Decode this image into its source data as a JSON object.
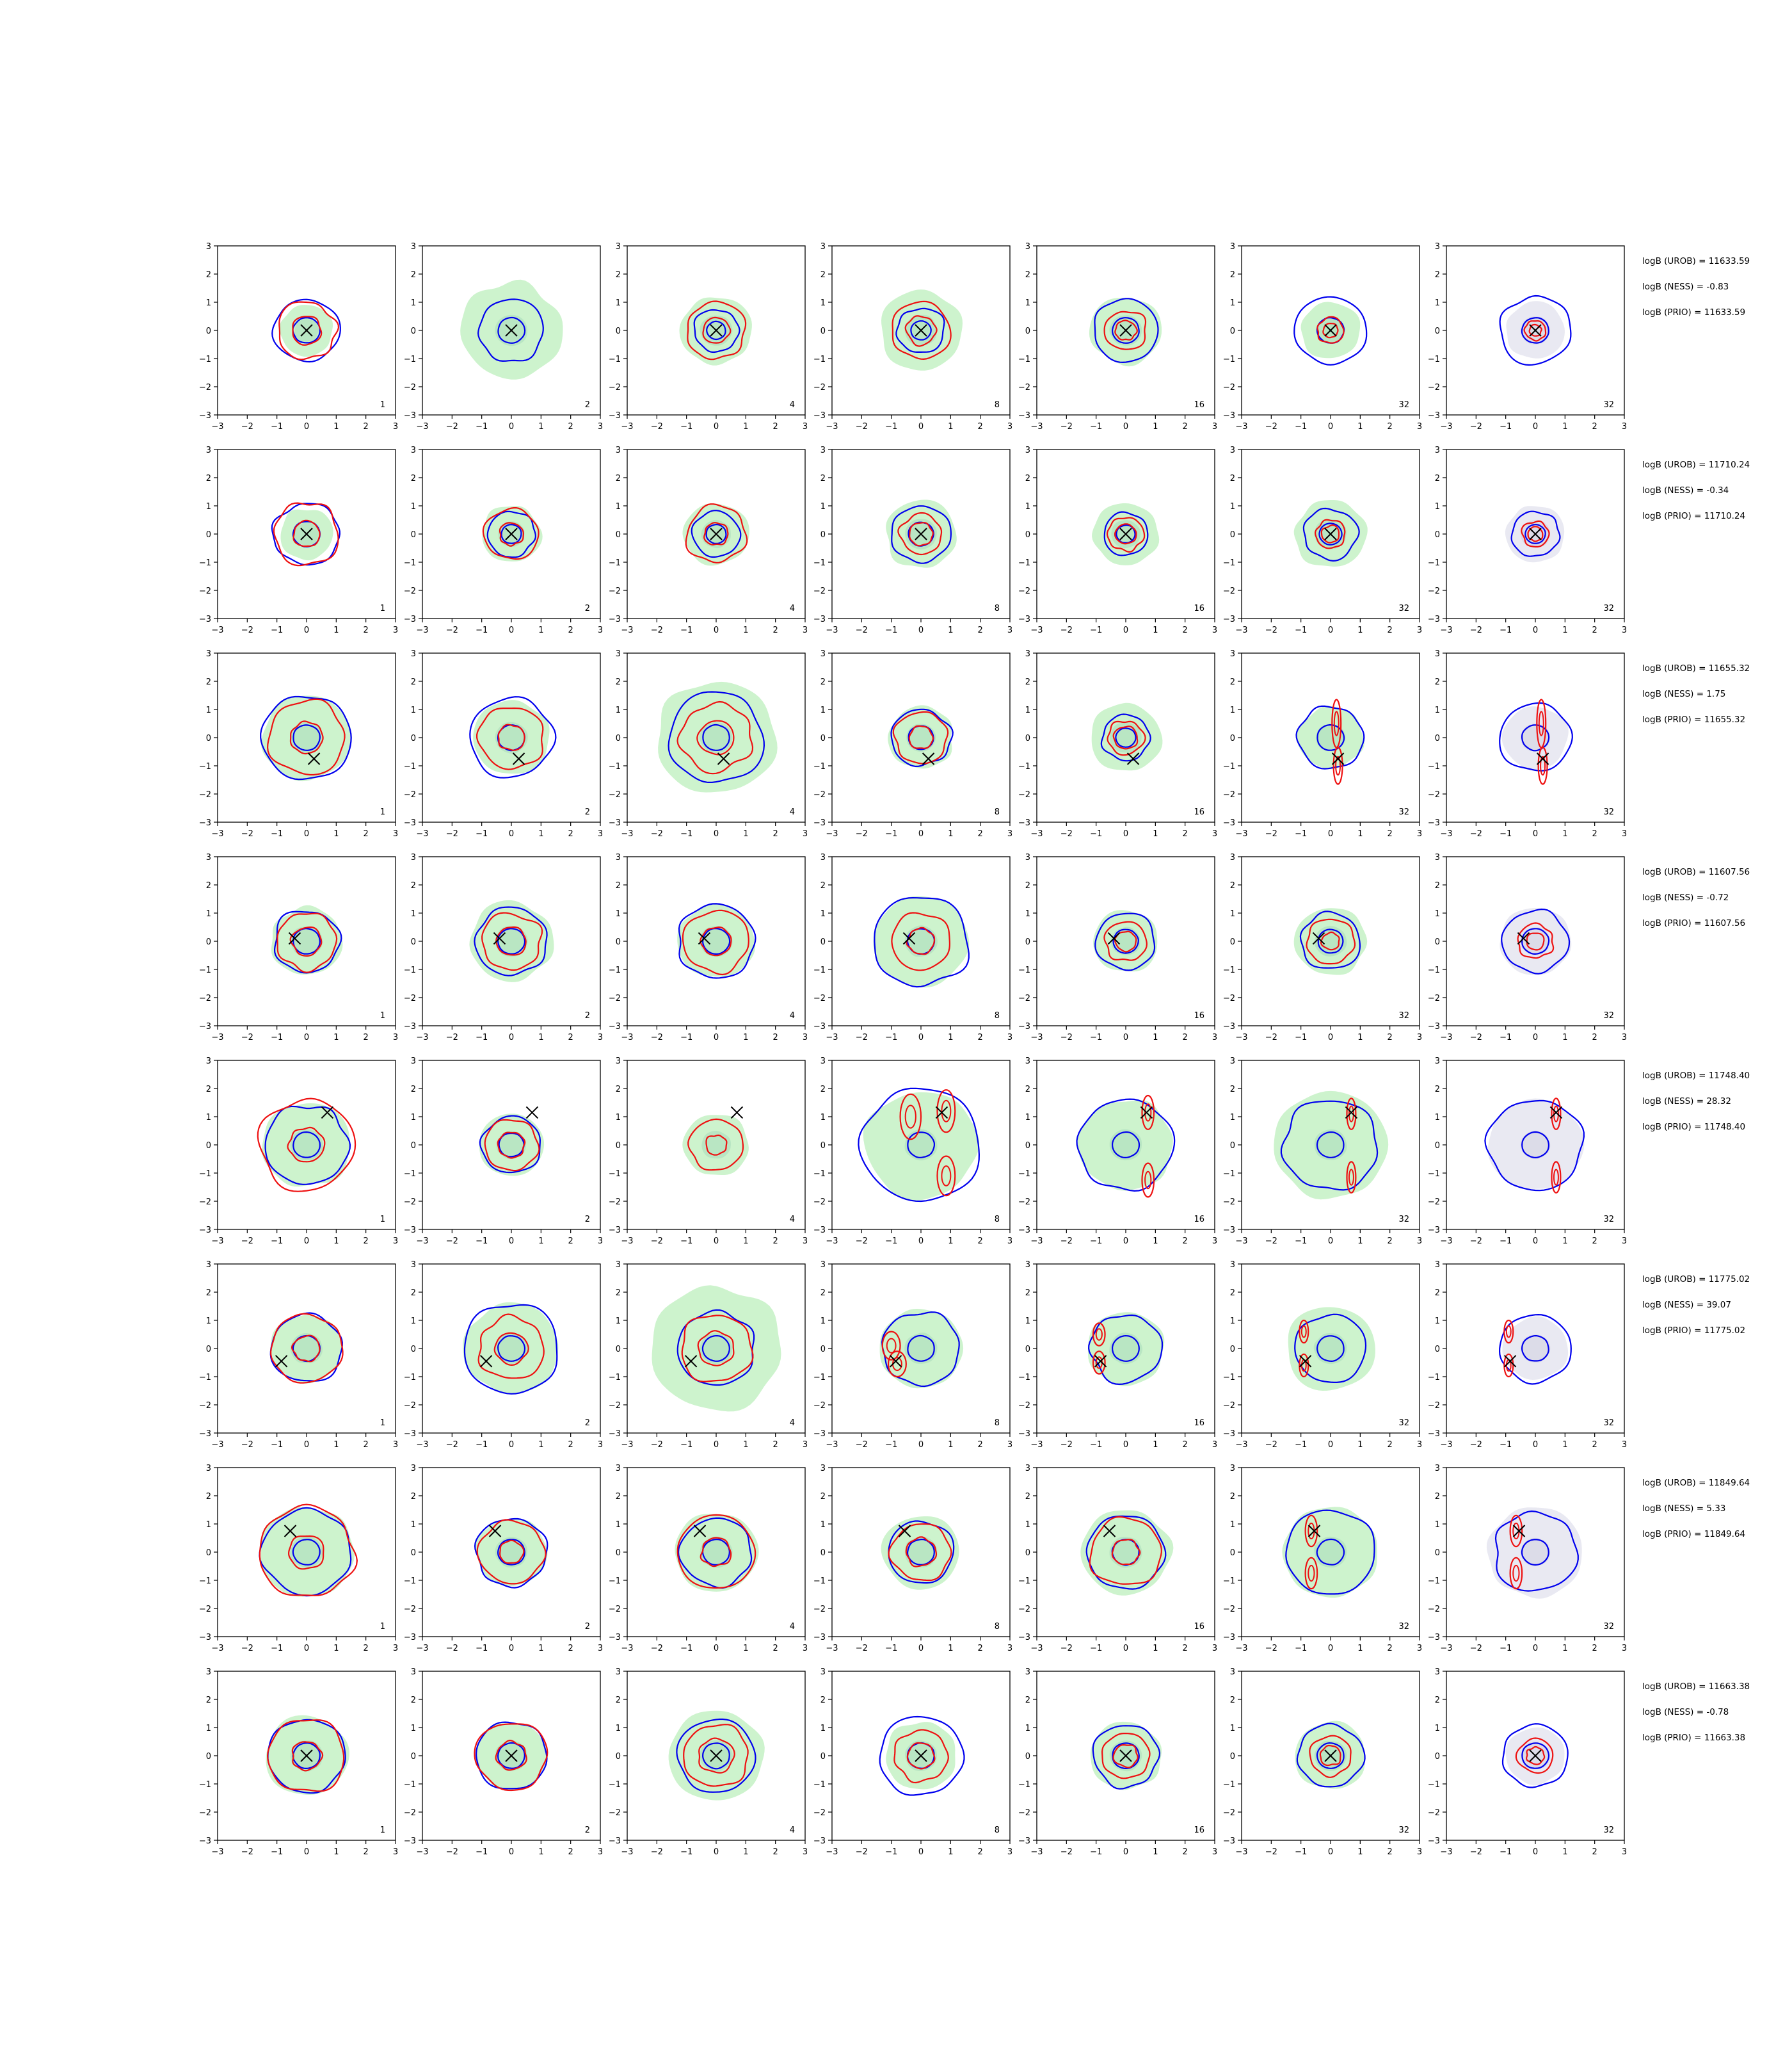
{
  "chart_data": {
    "type": "contour-grid",
    "rows": 8,
    "cols": 7,
    "xlim": [
      -3,
      3
    ],
    "ylim": [
      -3,
      3
    ],
    "ticks": [
      "−3",
      "−2",
      "−1",
      "0",
      "1",
      "2",
      "3"
    ],
    "tick_values": [
      -3,
      -2,
      -1,
      0,
      1,
      2,
      3
    ],
    "column_labels": [
      "1",
      "2",
      "4",
      "8",
      "16",
      "32",
      "32"
    ],
    "colors": {
      "blue_contour": "#0000ee",
      "red_contour": "#ee1111",
      "green_fill": "#cdf3cd",
      "green_core": "#b9e6c3",
      "grey_fill": "#e9e9f2",
      "marker": "#000000"
    },
    "panels": [
      [
        {
          "marker": [
            0,
            0
          ],
          "green": 0.9,
          "blue": 1.1,
          "red": [
            1.0,
            0.5
          ]
        },
        {
          "marker": [
            0,
            0
          ],
          "green": 1.7,
          "blue": 1.1,
          "red": []
        },
        {
          "marker": [
            0,
            0
          ],
          "green": 1.2,
          "blue": 0.75,
          "red": [
            1.0,
            0.45
          ]
        },
        {
          "marker": [
            0,
            0
          ],
          "green": 1.4,
          "blue": 0.8,
          "red": [
            1.0,
            0.5
          ]
        },
        {
          "marker": [
            0,
            0
          ],
          "green": 1.2,
          "blue": 1.1,
          "red": [
            0.7,
            0.35
          ]
        },
        {
          "marker": [
            0,
            0
          ],
          "green": 1.0,
          "blue": 1.2,
          "red": [
            0.45,
            0.25
          ]
        },
        {
          "marker": [
            0,
            0
          ],
          "grey": 1.0,
          "blue": 1.2,
          "red": [
            0.35,
            0.2
          ]
        }
      ],
      [
        {
          "marker": [
            0,
            0
          ],
          "green": 0.9,
          "blue": 1.1,
          "red": [
            1.1,
            0.45
          ]
        },
        {
          "marker": [
            0,
            0
          ],
          "green": 1.0,
          "blue": 0.8,
          "red": [
            0.9,
            0.4
          ]
        },
        {
          "marker": [
            0,
            0
          ],
          "green": 1.1,
          "blue": 0.8,
          "red": [
            1.0,
            0.4
          ]
        },
        {
          "marker": [
            0,
            0
          ],
          "green": 1.2,
          "blue": 1.0,
          "red": [
            0.7,
            0.4
          ]
        },
        {
          "marker": [
            0,
            0
          ],
          "green": 1.1,
          "blue": 0.75,
          "red": [
            0.6,
            0.35
          ]
        },
        {
          "marker": [
            0,
            0
          ],
          "green": 1.2,
          "blue": 0.9,
          "red": [
            0.5,
            0.3
          ]
        },
        {
          "marker": [
            0,
            0
          ],
          "grey": 1.0,
          "blue": 0.8,
          "red": [
            0.45,
            0.25
          ]
        }
      ],
      [
        {
          "marker": [
            0.25,
            -0.75
          ],
          "green": 1.5,
          "blue": 1.5,
          "red": [
            1.3,
            0.55
          ]
        },
        {
          "marker": [
            0.25,
            -0.75
          ],
          "green": 1.3,
          "blue": 1.4,
          "red": [
            1.1,
            0.45
          ]
        },
        {
          "marker": [
            0.25,
            -0.75
          ],
          "green": 2.0,
          "blue": 1.6,
          "red": [
            1.2,
            0.6
          ]
        },
        {
          "marker": [
            0.25,
            -0.75
          ],
          "green": 1.1,
          "blue": 1.0,
          "red": [
            0.9,
            0.4
          ]
        },
        {
          "marker": [
            0.25,
            -0.75
          ],
          "green": 1.2,
          "blue": 0.8,
          "red": [
            0.6,
            0.4
          ]
        },
        {
          "marker": [
            0.25,
            -0.75
          ],
          "green": 1.1,
          "blue": 1.1,
          "ellipses": [
            [
              0.2,
              0.5,
              0.15,
              0.85
            ],
            [
              0.25,
              -1.0,
              0.15,
              0.65
            ]
          ]
        },
        {
          "marker": [
            0.25,
            -0.75
          ],
          "grey": 1.1,
          "blue": 1.2,
          "ellipses": [
            [
              0.2,
              0.5,
              0.15,
              0.85
            ],
            [
              0.25,
              -1.0,
              0.15,
              0.65
            ]
          ]
        }
      ],
      [
        {
          "marker": [
            -0.4,
            0.1
          ],
          "green": 1.2,
          "blue": 1.1,
          "red": [
            1.0,
            0.5
          ]
        },
        {
          "marker": [
            -0.4,
            0.1
          ],
          "green": 1.4,
          "blue": 1.2,
          "red": [
            1.0,
            0.5
          ]
        },
        {
          "marker": [
            -0.4,
            0.1
          ],
          "green": 1.3,
          "blue": 1.3,
          "red": [
            1.1,
            0.5
          ]
        },
        {
          "marker": [
            -0.4,
            0.1
          ],
          "green": 1.6,
          "blue": 1.6,
          "red": [
            1.0,
            0.45
          ]
        },
        {
          "marker": [
            -0.4,
            0.1
          ],
          "green": 1.1,
          "blue": 1.0,
          "red": [
            0.7,
            0.35
          ]
        },
        {
          "marker": [
            -0.4,
            0.1
          ],
          "green": 1.2,
          "blue": 1.0,
          "red": [
            0.8,
            0.3
          ]
        },
        {
          "marker": [
            -0.4,
            0.1
          ],
          "grey": 1.2,
          "blue": 1.1,
          "red": [
            0.6,
            0.3
          ]
        }
      ],
      [
        {
          "marker": [
            0.7,
            1.15
          ],
          "green": 1.5,
          "blue": 1.4,
          "red": [
            1.6,
            0.6
          ]
        },
        {
          "marker": [
            0.7,
            1.15
          ],
          "green": 1.1,
          "blue": 1.0,
          "red": [
            0.9,
            0.45
          ]
        },
        {
          "marker": [
            0.7,
            1.15
          ],
          "green": 1.1,
          "blue": 0.0,
          "red": [
            0.9,
            0.35
          ]
        },
        {
          "marker": [
            0.7,
            1.15
          ],
          "green": 1.9,
          "blue": 2.0,
          "ellipses": [
            [
              -0.35,
              1.0,
              0.35,
              0.8
            ],
            [
              0.85,
              1.2,
              0.3,
              0.75
            ],
            [
              0.85,
              -1.1,
              0.3,
              0.7
            ]
          ]
        },
        {
          "marker": [
            0.7,
            1.15
          ],
          "green": 1.6,
          "blue": 1.6,
          "ellipses": [
            [
              0.75,
              1.15,
              0.2,
              0.6
            ],
            [
              0.75,
              -1.25,
              0.2,
              0.6
            ]
          ]
        },
        {
          "marker": [
            0.7,
            1.15
          ],
          "green": 1.9,
          "blue": 1.6,
          "ellipses": [
            [
              0.7,
              1.1,
              0.15,
              0.55
            ],
            [
              0.7,
              -1.15,
              0.15,
              0.55
            ]
          ]
        },
        {
          "marker": [
            0.7,
            1.15
          ],
          "grey": 1.6,
          "blue": 1.6,
          "ellipses": [
            [
              0.7,
              1.1,
              0.15,
              0.55
            ],
            [
              0.7,
              -1.15,
              0.15,
              0.55
            ]
          ]
        }
      ],
      [
        {
          "marker": [
            -0.85,
            -0.45
          ],
          "green": 1.2,
          "blue": 1.2,
          "red": [
            1.2,
            0.45
          ]
        },
        {
          "marker": [
            -0.85,
            -0.45
          ],
          "green": 1.6,
          "blue": 1.6,
          "red": [
            1.1,
            0.55
          ]
        },
        {
          "marker": [
            -0.85,
            -0.45
          ],
          "green": 2.2,
          "blue": 1.3,
          "red": [
            1.2,
            0.6
          ]
        },
        {
          "marker": [
            -0.85,
            -0.45
          ],
          "green": 1.4,
          "blue": 1.3,
          "ellipses": [
            [
              -1.0,
              0.1,
              0.3,
              0.5
            ],
            [
              -0.8,
              -0.55,
              0.3,
              0.45
            ]
          ]
        },
        {
          "marker": [
            -0.85,
            -0.45
          ],
          "green": 1.3,
          "blue": 1.2,
          "ellipses": [
            [
              -0.9,
              0.5,
              0.2,
              0.4
            ],
            [
              -0.9,
              -0.5,
              0.2,
              0.4
            ]
          ]
        },
        {
          "marker": [
            -0.85,
            -0.45
          ],
          "green": 1.5,
          "blue": 1.2,
          "ellipses": [
            [
              -0.9,
              0.6,
              0.15,
              0.4
            ],
            [
              -0.9,
              -0.6,
              0.15,
              0.4
            ]
          ]
        },
        {
          "marker": [
            -0.85,
            -0.45
          ],
          "grey": 1.1,
          "blue": 1.2,
          "ellipses": [
            [
              -0.9,
              0.6,
              0.15,
              0.4
            ],
            [
              -0.9,
              -0.6,
              0.15,
              0.4
            ]
          ]
        }
      ],
      [
        {
          "marker": [
            -0.55,
            0.75
          ],
          "green": 1.6,
          "blue": 1.5,
          "red": [
            1.6,
            0.6
          ]
        },
        {
          "marker": [
            -0.55,
            0.75
          ],
          "green": 1.2,
          "blue": 1.2,
          "red": [
            1.1,
            0.4
          ]
        },
        {
          "marker": [
            -0.55,
            0.75
          ],
          "green": 1.4,
          "blue": 1.2,
          "red": [
            1.3,
            0.5
          ]
        },
        {
          "marker": [
            -0.55,
            0.75
          ],
          "green": 1.3,
          "blue": 1.1,
          "red": [
            1.0,
            0.5
          ]
        },
        {
          "marker": [
            -0.55,
            0.75
          ],
          "green": 1.5,
          "blue": 1.3,
          "red": [
            1.2,
            0.45
          ]
        },
        {
          "marker": [
            -0.55,
            0.75
          ],
          "green": 1.6,
          "blue": 1.5,
          "ellipses": [
            [
              -0.65,
              0.75,
              0.2,
              0.55
            ],
            [
              -0.65,
              -0.75,
              0.2,
              0.55
            ]
          ]
        },
        {
          "marker": [
            -0.55,
            0.75
          ],
          "grey": 1.6,
          "blue": 1.4,
          "ellipses": [
            [
              -0.65,
              0.75,
              0.2,
              0.55
            ],
            [
              -0.65,
              -0.75,
              0.2,
              0.55
            ]
          ]
        }
      ],
      [
        {
          "marker": [
            0,
            0
          ],
          "green": 1.4,
          "blue": 1.3,
          "red": [
            1.3,
            0.5
          ]
        },
        {
          "marker": [
            0,
            0
          ],
          "green": 1.2,
          "blue": 1.2,
          "red": [
            1.2,
            0.5
          ]
        },
        {
          "marker": [
            0,
            0
          ],
          "green": 1.6,
          "blue": 1.3,
          "red": [
            1.1,
            0.6
          ]
        },
        {
          "marker": [
            0,
            0
          ],
          "green": 1.2,
          "blue": 1.4,
          "red": [
            0.9,
            0.45
          ]
        },
        {
          "marker": [
            0,
            0
          ],
          "green": 1.2,
          "blue": 1.1,
          "red": [
            0.8,
            0.4
          ]
        },
        {
          "marker": [
            0,
            0
          ],
          "green": 1.2,
          "blue": 1.1,
          "red": [
            0.7,
            0.35
          ]
        },
        {
          "marker": [
            0,
            0
          ],
          "grey": 1.0,
          "blue": 1.1,
          "red": [
            0.6,
            0.3
          ]
        }
      ]
    ],
    "row_annotations": [
      [
        "logB (UROB) = 11633.59",
        "logB (NESS) = -0.83",
        "logB (PRIO) = 11633.59"
      ],
      [
        "logB (UROB) = 11710.24",
        "logB (NESS) = -0.34",
        "logB (PRIO) = 11710.24"
      ],
      [
        "logB (UROB) = 11655.32",
        "logB (NESS) = 1.75",
        "logB (PRIO) = 11655.32"
      ],
      [
        "logB (UROB) = 11607.56",
        "logB (NESS) = -0.72",
        "logB (PRIO) = 11607.56"
      ],
      [
        "logB (UROB) = 11748.40",
        "logB (NESS) = 28.32",
        "logB (PRIO) = 11748.40"
      ],
      [
        "logB (UROB) = 11775.02",
        "logB (NESS) = 39.07",
        "logB (PRIO) = 11775.02"
      ],
      [
        "logB (UROB) = 11849.64",
        "logB (NESS) = 5.33",
        "logB (PRIO) = 11849.64"
      ],
      [
        "logB (UROB) = 11663.38",
        "logB (NESS) = -0.78",
        "logB (PRIO) = 11663.38"
      ]
    ]
  }
}
